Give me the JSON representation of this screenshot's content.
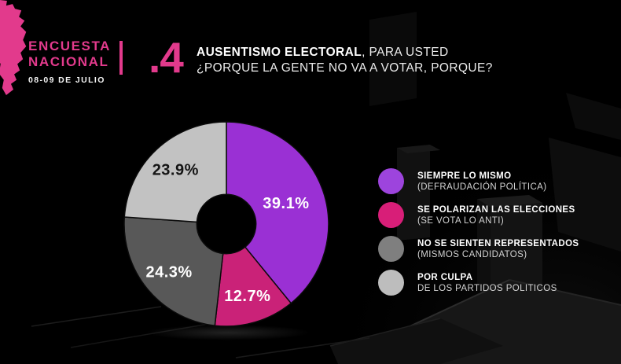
{
  "brand": {
    "line1": "ENCUESTA",
    "line2": "NACIONAL",
    "date": "08-09 DE JULIO",
    "accent_color": "#e23a8c"
  },
  "title": {
    "number": ".4",
    "bold": "AUSENTISMO ELECTORAL",
    "rest": ", PARA USTED",
    "line2": "¿PORQUE LA GENTE NO VA A VOTAR, PORQUE?"
  },
  "chart_data": {
    "type": "pie",
    "subtype": "donut",
    "title": "AUSENTISMO ELECTORAL, PARA USTED ¿PORQUE LA GENTE NO VA A VOTAR, PORQUE?",
    "direction": "clockwise",
    "start_angle_deg": 0,
    "inner_radius_frac": 0.29,
    "legend_position": "right",
    "slices": [
      {
        "label": "SIEMPRE LO MISMO (DEFRAUDACIÓN POLÍTICA)",
        "value": 39.1,
        "display": "39.1%",
        "color": "#9a30d4",
        "label_color": "#ffffff"
      },
      {
        "label": "SE POLARIZAN LAS ELECCIONES (SE VOTA LO ANTI)",
        "value": 12.7,
        "display": "12.7%",
        "color": "#ca2278",
        "label_color": "#ffffff"
      },
      {
        "label": "NO SE SIENTEN REPRESENTADOS (MISMOS CANDIDATOS)",
        "value": 24.3,
        "display": "24.3%",
        "color": "#585858",
        "label_color": "#ffffff"
      },
      {
        "label": "POR CULPA DE LOS PARTIDOS POLITICOS",
        "value": 23.9,
        "display": "23.9%",
        "color": "#c2c2c2",
        "label_color": "#141414"
      }
    ]
  },
  "legend": {
    "items": [
      {
        "color": "#9d44dd",
        "title": "SIEMPRE LO MISMO",
        "subtitle": "(DEFRAUDACIÓN POLÍTICA)"
      },
      {
        "color": "#d81e78",
        "title": "SE POLARIZAN LAS ELECCIONES",
        "subtitle": "(SE VOTA LO ANTI)"
      },
      {
        "color": "#7f7f7f",
        "title": "NO SE SIENTEN REPRESENTADOS",
        "subtitle": "(MISMOS CANDIDATOS)"
      },
      {
        "color": "#bdbdbd",
        "title": "POR CULPA",
        "subtitle": "DE LOS PARTIDOS POLITICOS"
      }
    ]
  }
}
